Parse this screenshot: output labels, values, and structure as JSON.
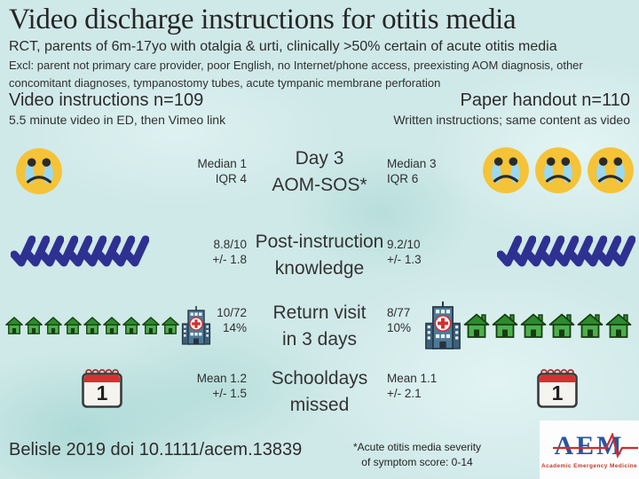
{
  "title": "Video discharge instructions for otitis media",
  "subtitle": "RCT, parents of 6m-17yo with otalgia & urti, clinically >50% certain of acute otitis media",
  "exclusions_line1": "Excl: parent not primary care provider, poor English, no Internet/phone access, preexisting AOM diagnosis, other",
  "exclusions_line2": "concomitant diagnoses, tympanostomy tubes, acute tympanic membrane perforation",
  "groups": {
    "video": {
      "title": "Video instructions n=109",
      "desc": "5.5 minute video in ED, then Vimeo link"
    },
    "paper": {
      "title": "Paper handout n=110",
      "desc": "Written instructions; same content as video"
    }
  },
  "rows": [
    {
      "outcome_line1": "Day 3",
      "outcome_line2": "AOM-SOS*",
      "video_stat_line1": "Median 1",
      "video_stat_line2": "IQR 4",
      "paper_stat_line1": "Median 3",
      "paper_stat_line2": "IQR 6",
      "video_icons": [
        {
          "type": "crying-face",
          "count": 1
        }
      ],
      "paper_icons": [
        {
          "type": "crying-face",
          "count": 3
        }
      ]
    },
    {
      "outcome_line1": "Post-instruction",
      "outcome_line2": "knowledge",
      "video_stat_line1": "8.8/10",
      "video_stat_line2": "+/- 1.8",
      "paper_stat_line1": "9.2/10",
      "paper_stat_line2": "+/- 1.3",
      "video_icons": [
        {
          "type": "checkmark",
          "count": 9
        }
      ],
      "paper_icons": [
        {
          "type": "checkmark",
          "count": 9
        }
      ]
    },
    {
      "outcome_line1": "Return visit",
      "outcome_line2": "in 3 days",
      "video_stat_line1": "10/72",
      "video_stat_line2": "14%",
      "paper_stat_line1": "8/77",
      "paper_stat_line2": "10%",
      "video_icons": [
        {
          "type": "house-small",
          "count": 9
        },
        {
          "type": "hospital-small",
          "count": 1
        }
      ],
      "paper_icons": [
        {
          "type": "hospital-large",
          "count": 1
        },
        {
          "type": "house-large",
          "count": 6
        }
      ]
    },
    {
      "outcome_line1": "Schooldays",
      "outcome_line2": "missed",
      "video_stat_line1": "Mean 1.2",
      "video_stat_line2": "+/- 1.5",
      "paper_stat_line1": "Mean 1.1",
      "paper_stat_line2": "+/- 2.1",
      "video_icons": [
        {
          "type": "calendar",
          "count": 1,
          "label": "1"
        }
      ],
      "paper_icons": [
        {
          "type": "calendar",
          "count": 1,
          "label": "1"
        }
      ]
    }
  ],
  "footer": {
    "citation": "Belisle 2019 doi 10.1111/acem.13839",
    "footnote_line1": "*Acute otitis media severity",
    "footnote_line2": "of symptom score: 0-14"
  },
  "logo": {
    "acronym": "AEM",
    "name": "Academic Emergency Medicine"
  },
  "colors": {
    "background": "#CFE9E8",
    "text": "#2B2B2B",
    "checkmark": "#2E3192",
    "house_body": "#4CAF4C",
    "house_roof": "#2F8A2F",
    "house_outline": "#163D10",
    "hospital_body": "#4E7A96",
    "hospital_wing": "#3D617A",
    "cross_red": "#D32F2F",
    "face_yellow": "#F5C337",
    "tear_blue": "#9BD9F0",
    "calendar_red": "#D63031",
    "logo_blue": "#2456A4",
    "logo_red": "#C0392B"
  }
}
